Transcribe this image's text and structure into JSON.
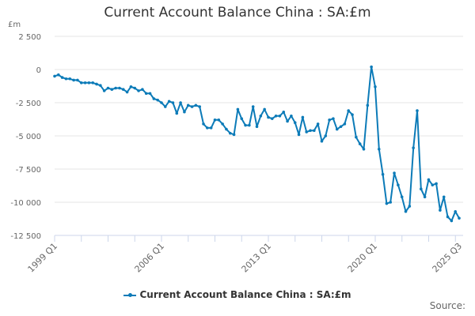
{
  "chart": {
    "title": "Current Account Balance China : SA:£m",
    "unit_label": "£m",
    "legend_label": "Current Account Balance China : SA:£m",
    "source_label": "Source:",
    "line_color": "#0c7bb8",
    "grid_color": "#e6e6e6"
  },
  "chart_data": {
    "type": "line",
    "title": "Current Account Balance China : SA:£m",
    "xlabel": "",
    "ylabel": "£m",
    "ylim": [
      -12500,
      2500
    ],
    "yticks": [
      2500,
      0,
      -2500,
      -5000,
      -7500,
      -10000,
      -12500
    ],
    "ytick_labels": [
      "2 500",
      "0",
      "-2 500",
      "-5 000",
      "-7 500",
      "-10 000",
      "-12 500"
    ],
    "xtick_labels": [
      "1999 Q1",
      "2006 Q1",
      "2013 Q1",
      "2020 Q1",
      "2025 Q3"
    ],
    "grid": true,
    "legend_position": "bottom",
    "series": [
      {
        "name": "Current Account Balance China : SA:£m",
        "start": "1999 Q1",
        "end": "2025 Q3",
        "values": [
          -500,
          -400,
          -600,
          -700,
          -700,
          -800,
          -800,
          -1000,
          -1000,
          -1000,
          -1000,
          -1100,
          -1200,
          -1600,
          -1400,
          -1500,
          -1400,
          -1400,
          -1500,
          -1700,
          -1300,
          -1400,
          -1600,
          -1500,
          -1800,
          -1800,
          -2200,
          -2300,
          -2500,
          -2800,
          -2400,
          -2500,
          -3300,
          -2500,
          -3200,
          -2700,
          -2800,
          -2700,
          -2800,
          -4100,
          -4400,
          -4400,
          -3800,
          -3800,
          -4100,
          -4500,
          -4800,
          -4900,
          -3000,
          -3700,
          -4200,
          -4200,
          -2800,
          -4300,
          -3500,
          -3000,
          -3600,
          -3700,
          -3500,
          -3500,
          -3200,
          -3900,
          -3500,
          -4000,
          -4900,
          -3600,
          -4700,
          -4600,
          -4600,
          -4100,
          -5400,
          -5000,
          -3800,
          -3700,
          -4500,
          -4300,
          -4100,
          -3100,
          -3400,
          -5100,
          -5600,
          -6000,
          -2700,
          200,
          -1300,
          -6000,
          -7900,
          -10100,
          -10000,
          -7800,
          -8700,
          -9600,
          -10700,
          -10300,
          -5900,
          -3100,
          -9000,
          -9600,
          -8300,
          -8700,
          -8600,
          -10600,
          -9600,
          -11100,
          -11400,
          -10700,
          -11200
        ]
      }
    ]
  }
}
